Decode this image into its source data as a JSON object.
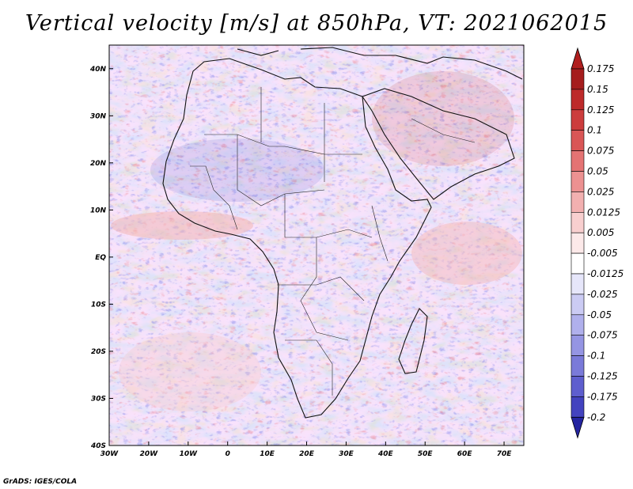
{
  "title": "Vertical velocity [m/s] at 850hPa, VT: 2021062015",
  "footer": "GrADS: IGES/COLA",
  "map": {
    "lon_range": [
      -30,
      75
    ],
    "lat_range": [
      -40,
      45
    ],
    "lon_ticks": [
      {
        "lon": -30,
        "label": "30W"
      },
      {
        "lon": -20,
        "label": "20W"
      },
      {
        "lon": -10,
        "label": "10W"
      },
      {
        "lon": 0,
        "label": "0"
      },
      {
        "lon": 10,
        "label": "10E"
      },
      {
        "lon": 20,
        "label": "20E"
      },
      {
        "lon": 30,
        "label": "30E"
      },
      {
        "lon": 40,
        "label": "40E"
      },
      {
        "lon": 50,
        "label": "50E"
      },
      {
        "lon": 60,
        "label": "60E"
      },
      {
        "lon": 70,
        "label": "70E"
      }
    ],
    "lat_ticks": [
      {
        "lat": 40,
        "label": "40N"
      },
      {
        "lat": 30,
        "label": "30N"
      },
      {
        "lat": 20,
        "label": "20N"
      },
      {
        "lat": 10,
        "label": "10N"
      },
      {
        "lat": 0,
        "label": "EQ"
      },
      {
        "lat": -10,
        "label": "10S"
      },
      {
        "lat": -20,
        "label": "20S"
      },
      {
        "lat": -30,
        "label": "30S"
      },
      {
        "lat": -40,
        "label": "40S"
      }
    ]
  },
  "colorbar": {
    "levels": [
      {
        "label": "0.175",
        "color": "#a51d1d"
      },
      {
        "label": "0.15",
        "color": "#bd2a2a"
      },
      {
        "label": "0.125",
        "color": "#cc3d3d"
      },
      {
        "label": "0.1",
        "color": "#d95656"
      },
      {
        "label": "0.075",
        "color": "#e47373"
      },
      {
        "label": "0.05",
        "color": "#ec9191"
      },
      {
        "label": "0.025",
        "color": "#f2b0b0"
      },
      {
        "label": "0.0125",
        "color": "#f8cfcf"
      },
      {
        "label": "0.005",
        "color": "#fce9e9"
      },
      {
        "label": "-0.005",
        "color": "#ffffff"
      },
      {
        "label": "-0.0125",
        "color": "#e6e6fa"
      },
      {
        "label": "-0.025",
        "color": "#cbcbf3"
      },
      {
        "label": "-0.05",
        "color": "#b0b0ec"
      },
      {
        "label": "-0.075",
        "color": "#9595e3"
      },
      {
        "label": "-0.1",
        "color": "#7a7ad9"
      },
      {
        "label": "-0.125",
        "color": "#5e5ece"
      },
      {
        "label": "-0.175",
        "color": "#4343bf"
      },
      {
        "label": "-0.2",
        "color": "#2b2bab"
      }
    ],
    "top_color": "#b01e1e",
    "bottom_color": "#2424a0"
  }
}
